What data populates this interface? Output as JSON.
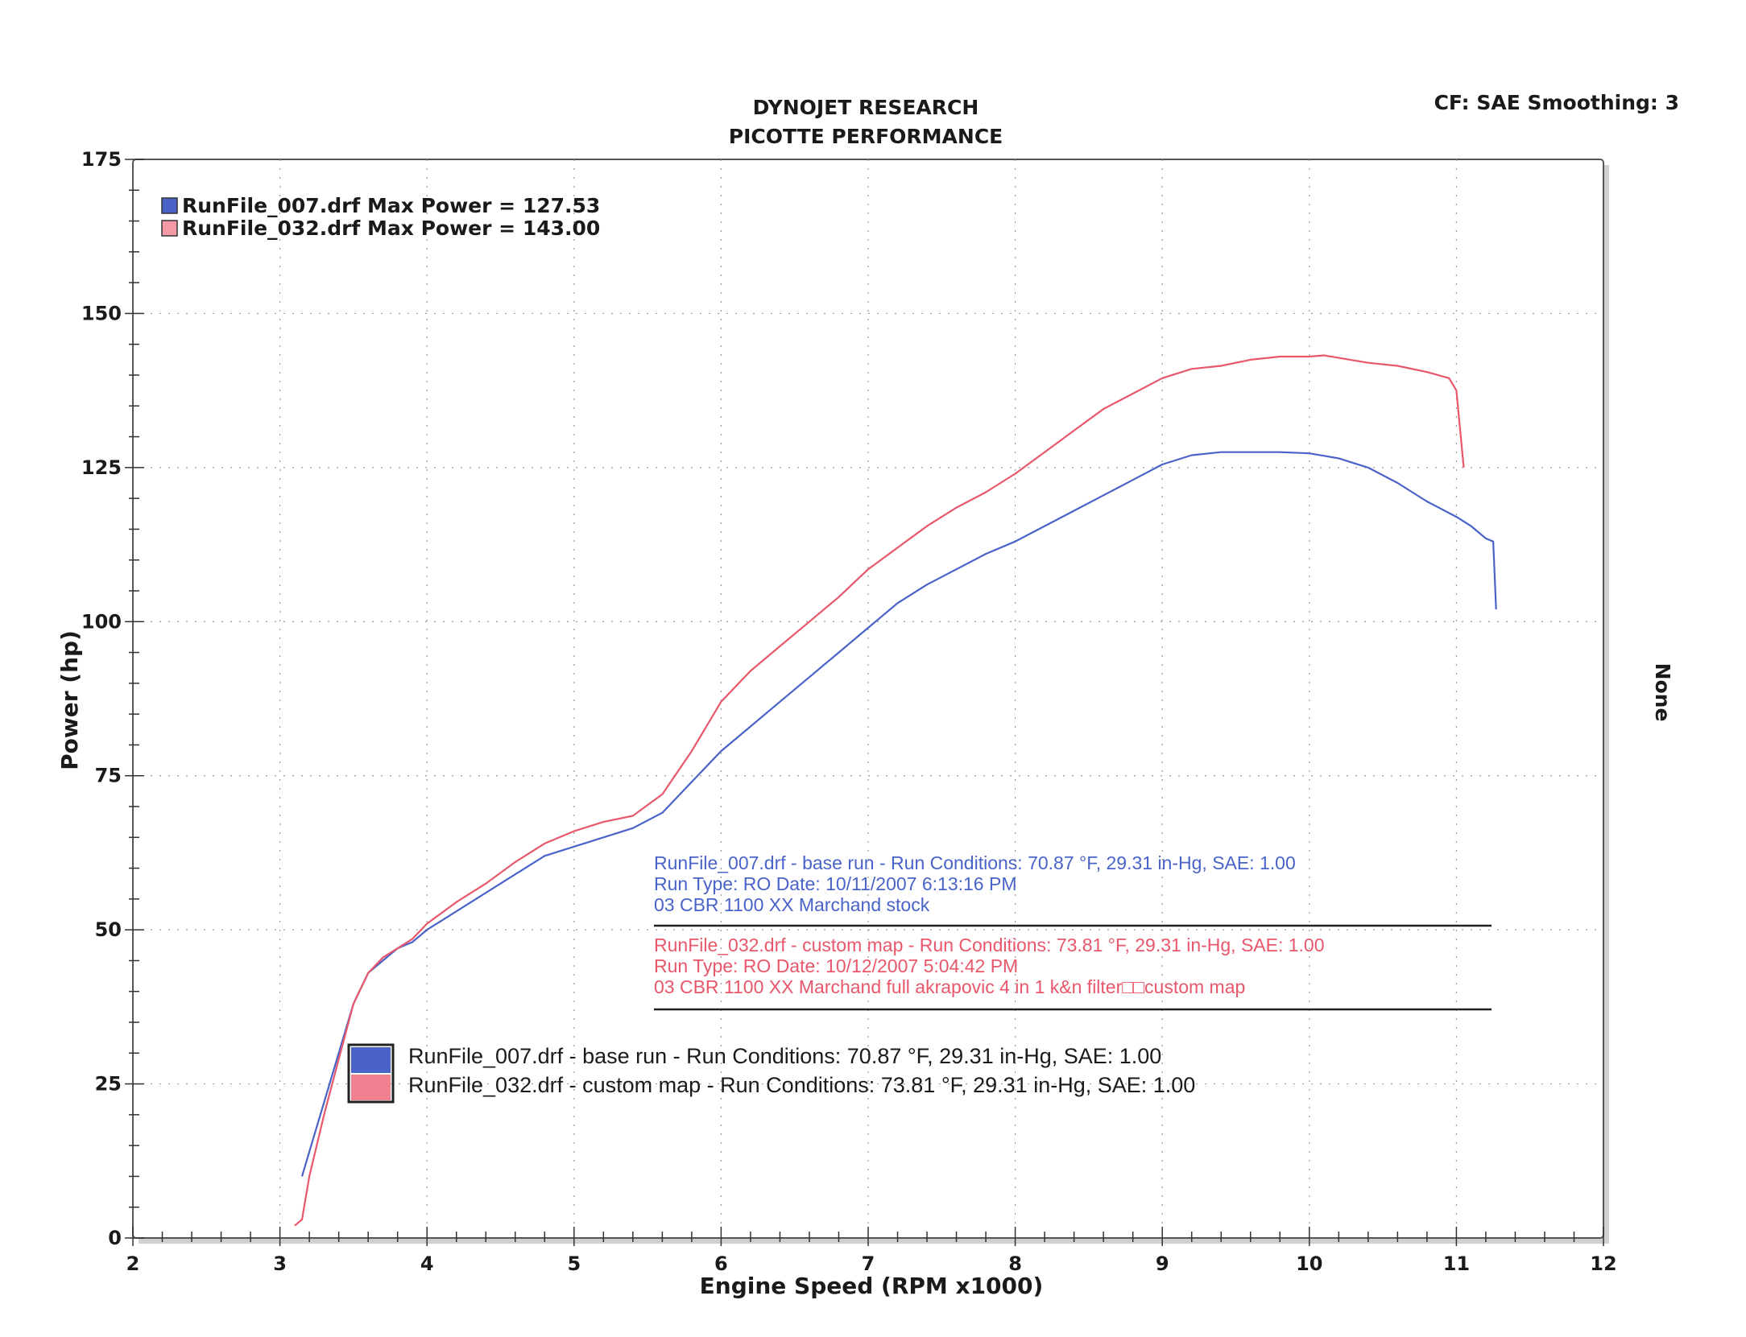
{
  "header": {
    "title_line1": "DYNOJET RESEARCH",
    "title_line2": "PICOTTE PERFORMANCE",
    "corner": "CF: SAE  Smoothing: 3",
    "right_label": "None"
  },
  "colors": {
    "run_007": "#4a63c8",
    "run_032": "#e8576b"
  },
  "top_legend": [
    "RunFile_007.drf Max Power = 127.53",
    "RunFile_032.drf Max Power = 143.00"
  ],
  "info_block": {
    "run_007": [
      "RunFile_007.drf - base run  -  Run Conditions: 70.87 °F, 29.31 in-Hg, SAE: 1.00",
      "Run Type: RO  Date: 10/11/2007 6:13:16 PM",
      " 03 CBR 1100 XX  Marchand   stock"
    ],
    "run_032": [
      "RunFile_032.drf - custom map  -  Run Conditions: 73.81 °F, 29.31 in-Hg, SAE: 1.00",
      "Run Type: RO  Date: 10/12/2007 5:04:42 PM",
      " 03 CBR 1100 XX  Marchand   full akrapovic 4 in 1  k&n filter□□custom map"
    ]
  },
  "bottom_legend": [
    "RunFile_007.drf - base run  -  Run Conditions: 70.87 °F, 29.31 in-Hg, SAE: 1.00",
    "RunFile_032.drf - custom map  -  Run Conditions: 73.81 °F, 29.31 in-Hg, SAE: 1.00"
  ],
  "chart_data": {
    "type": "line",
    "xlabel": "Engine Speed (RPM x1000)",
    "ylabel": "Power (hp)",
    "xlim": [
      2,
      12
    ],
    "ylim": [
      0,
      175
    ],
    "x_ticks": [
      "2",
      "3",
      "4",
      "5",
      "6",
      "7",
      "8",
      "9",
      "10",
      "11",
      "12"
    ],
    "y_ticks": [
      "0",
      "25",
      "50",
      "75",
      "100",
      "125",
      "150",
      "175"
    ],
    "grid": true,
    "series": [
      {
        "name": "RunFile_007.drf",
        "x": [
          3.15,
          3.2,
          3.3,
          3.4,
          3.5,
          3.6,
          3.7,
          3.8,
          3.9,
          4.0,
          4.2,
          4.4,
          4.6,
          4.8,
          5.0,
          5.2,
          5.4,
          5.6,
          5.8,
          6.0,
          6.2,
          6.4,
          6.6,
          6.8,
          7.0,
          7.2,
          7.4,
          7.6,
          7.8,
          8.0,
          8.2,
          8.4,
          8.6,
          8.8,
          9.0,
          9.2,
          9.4,
          9.6,
          9.8,
          10.0,
          10.2,
          10.4,
          10.6,
          10.8,
          11.0,
          11.1,
          11.2,
          11.25,
          11.27
        ],
        "y": [
          10,
          14,
          22,
          30,
          38,
          43,
          45,
          47,
          48,
          50,
          53,
          56,
          59,
          62,
          63.5,
          65,
          66.5,
          69,
          74,
          79,
          83,
          87,
          91,
          95,
          99,
          103,
          106,
          108.5,
          111,
          113,
          115.5,
          118,
          120.5,
          123,
          125.5,
          127,
          127.5,
          127.5,
          127.5,
          127.3,
          126.5,
          125,
          122.5,
          119.5,
          117,
          115.5,
          113.5,
          113,
          102
        ]
      },
      {
        "name": "RunFile_032.drf",
        "x": [
          3.1,
          3.15,
          3.2,
          3.3,
          3.4,
          3.5,
          3.6,
          3.7,
          3.8,
          3.9,
          4.0,
          4.2,
          4.4,
          4.6,
          4.8,
          5.0,
          5.2,
          5.4,
          5.6,
          5.8,
          6.0,
          6.2,
          6.4,
          6.6,
          6.8,
          7.0,
          7.2,
          7.4,
          7.6,
          7.8,
          8.0,
          8.2,
          8.4,
          8.6,
          8.8,
          9.0,
          9.2,
          9.4,
          9.6,
          9.8,
          10.0,
          10.1,
          10.2,
          10.4,
          10.6,
          10.8,
          10.95,
          11.0,
          11.05
        ],
        "y": [
          2,
          3,
          10,
          20,
          29,
          38,
          43,
          45.5,
          47,
          48.5,
          51,
          54.5,
          57.5,
          61,
          64,
          66,
          67.5,
          68.5,
          72,
          79,
          87,
          92,
          96,
          100,
          104,
          108.5,
          112,
          115.5,
          118.5,
          121,
          124,
          127.5,
          131,
          134.5,
          137,
          139.5,
          141,
          141.5,
          142.5,
          143,
          143,
          143.2,
          142.8,
          142,
          141.5,
          140.5,
          139.5,
          137.5,
          125
        ]
      }
    ]
  }
}
